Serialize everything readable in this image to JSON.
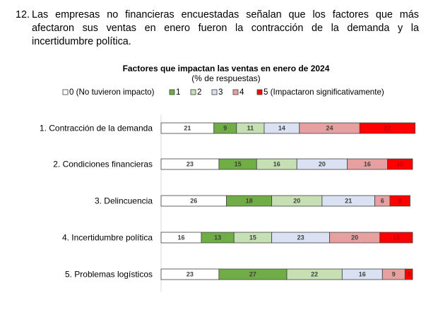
{
  "paragraph": {
    "number": "12.",
    "lines": [
      "Las empresas no financieras encuestadas señalan que los factores que más",
      "afectaron sus ventas en enero fueron la contracción de la demanda y la",
      "incertidumbre política."
    ]
  },
  "chart_data": {
    "type": "bar",
    "orientation": "horizontal",
    "stacked": true,
    "title": "Factores que impactan las ventas en enero de 2024",
    "subtitle": "(% de respuestas)",
    "categories": [
      "1. Contracción de la demanda",
      "2. Condiciones financieras",
      "3. Delincuencia",
      "4. Incertidumbre política",
      "5. Problemas logísticos"
    ],
    "series": [
      {
        "name": "0 (No tuvieron impacto)",
        "color": "#ffffff",
        "values": [
          21,
          23,
          26,
          16,
          23
        ]
      },
      {
        "name": "1",
        "color": "#70ad47",
        "values": [
          9,
          15,
          18,
          13,
          27
        ]
      },
      {
        "name": "2",
        "color": "#c6e0b4",
        "values": [
          11,
          16,
          20,
          15,
          22
        ]
      },
      {
        "name": "3",
        "color": "#d9e1f2",
        "values": [
          14,
          20,
          21,
          23,
          16
        ]
      },
      {
        "name": "4",
        "color": "#e6a0a0",
        "values": [
          24,
          16,
          6,
          20,
          9
        ]
      },
      {
        "name": "5 (Impactaron significativamente)",
        "color": "#ff0000",
        "values": [
          22,
          10,
          8,
          13,
          3
        ]
      }
    ],
    "xlim": [
      0,
      100
    ],
    "legend": "top"
  }
}
